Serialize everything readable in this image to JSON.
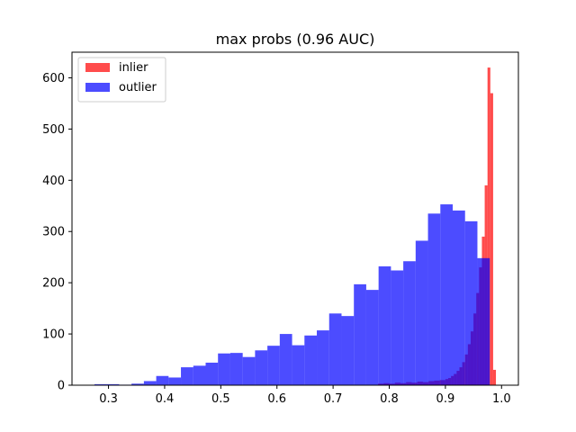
{
  "chart_data": {
    "type": "bar",
    "title": "max probs (0.96 AUC)",
    "xlabel": "",
    "ylabel": "",
    "xlim": [
      0.235,
      1.03
    ],
    "ylim": [
      0,
      650
    ],
    "xticks": [
      0.3,
      0.4,
      0.5,
      0.6,
      0.7,
      0.8,
      0.9,
      1.0
    ],
    "xtick_labels": [
      "0.3",
      "0.4",
      "0.5",
      "0.6",
      "0.7",
      "0.8",
      "0.9",
      "1.0"
    ],
    "yticks": [
      0,
      100,
      200,
      300,
      400,
      500,
      600
    ],
    "ytick_labels": [
      "0",
      "100",
      "200",
      "300",
      "400",
      "500",
      "600"
    ],
    "grid": false,
    "legend_position": "top-left",
    "series": [
      {
        "name": "inlier",
        "color": "#ff0000",
        "opacity": 0.7,
        "bins": [
          [
            0.78,
            0.79,
            3
          ],
          [
            0.79,
            0.8,
            4
          ],
          [
            0.8,
            0.81,
            3
          ],
          [
            0.81,
            0.82,
            5
          ],
          [
            0.82,
            0.83,
            4
          ],
          [
            0.83,
            0.84,
            6
          ],
          [
            0.84,
            0.85,
            5
          ],
          [
            0.85,
            0.86,
            7
          ],
          [
            0.86,
            0.87,
            6
          ],
          [
            0.87,
            0.88,
            8
          ],
          [
            0.88,
            0.89,
            9
          ],
          [
            0.89,
            0.9,
            10
          ],
          [
            0.9,
            0.905,
            12
          ],
          [
            0.905,
            0.91,
            14
          ],
          [
            0.91,
            0.915,
            18
          ],
          [
            0.915,
            0.92,
            22
          ],
          [
            0.92,
            0.925,
            28
          ],
          [
            0.925,
            0.93,
            35
          ],
          [
            0.93,
            0.935,
            45
          ],
          [
            0.935,
            0.94,
            60
          ],
          [
            0.94,
            0.945,
            80
          ],
          [
            0.945,
            0.95,
            105
          ],
          [
            0.95,
            0.955,
            140
          ],
          [
            0.955,
            0.96,
            180
          ],
          [
            0.96,
            0.965,
            230
          ],
          [
            0.965,
            0.97,
            290
          ],
          [
            0.97,
            0.975,
            390
          ],
          [
            0.975,
            0.98,
            620
          ],
          [
            0.98,
            0.985,
            570
          ],
          [
            0.985,
            0.99,
            30
          ]
        ]
      },
      {
        "name": "outlier",
        "color": "#0000ff",
        "opacity": 0.7,
        "bins": [
          [
            0.275,
            0.297,
            2
          ],
          [
            0.297,
            0.319,
            2
          ],
          [
            0.319,
            0.341,
            1
          ],
          [
            0.341,
            0.363,
            3
          ],
          [
            0.363,
            0.385,
            8
          ],
          [
            0.385,
            0.407,
            18
          ],
          [
            0.407,
            0.429,
            15
          ],
          [
            0.429,
            0.451,
            35
          ],
          [
            0.451,
            0.473,
            38
          ],
          [
            0.473,
            0.495,
            44
          ],
          [
            0.495,
            0.517,
            62
          ],
          [
            0.517,
            0.539,
            63
          ],
          [
            0.539,
            0.561,
            55
          ],
          [
            0.561,
            0.583,
            68
          ],
          [
            0.583,
            0.605,
            77
          ],
          [
            0.605,
            0.627,
            100
          ],
          [
            0.627,
            0.649,
            78
          ],
          [
            0.649,
            0.671,
            97
          ],
          [
            0.671,
            0.693,
            107
          ],
          [
            0.693,
            0.715,
            140
          ],
          [
            0.715,
            0.737,
            135
          ],
          [
            0.737,
            0.759,
            197
          ],
          [
            0.759,
            0.781,
            186
          ],
          [
            0.781,
            0.803,
            232
          ],
          [
            0.803,
            0.825,
            224
          ],
          [
            0.825,
            0.847,
            242
          ],
          [
            0.847,
            0.869,
            282
          ],
          [
            0.869,
            0.891,
            335
          ],
          [
            0.891,
            0.913,
            353
          ],
          [
            0.913,
            0.935,
            341
          ],
          [
            0.935,
            0.957,
            320
          ],
          [
            0.957,
            0.979,
            248
          ]
        ]
      }
    ]
  }
}
